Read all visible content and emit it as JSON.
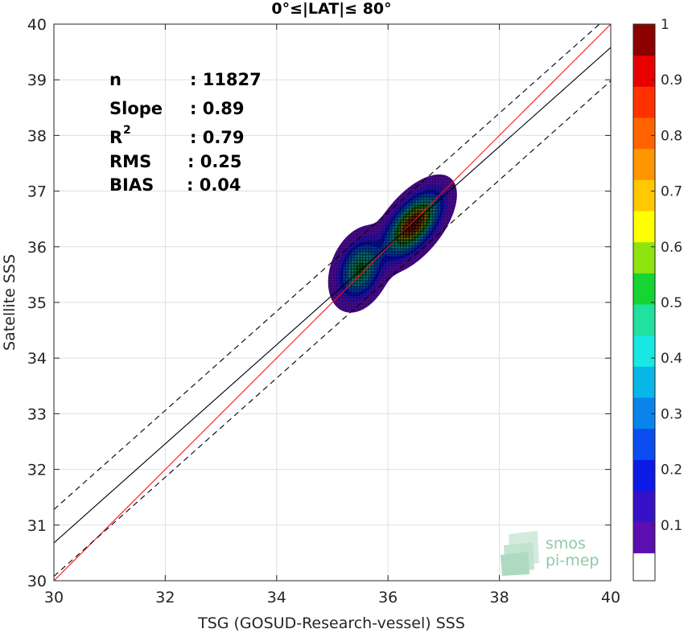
{
  "chart_data": {
    "type": "heatmap",
    "title": "0°≤|LAT|≤ 80°",
    "xlabel": "TSG (GOSUD-Research-vessel) SSS",
    "ylabel": "Satellite SSS",
    "xlim": [
      30,
      40
    ],
    "ylim": [
      30,
      40
    ],
    "xticks": [
      "30",
      "32",
      "34",
      "36",
      "38",
      "40"
    ],
    "yticks": [
      "30",
      "31",
      "32",
      "33",
      "34",
      "35",
      "36",
      "37",
      "38",
      "39",
      "40"
    ],
    "grid": true,
    "stats": [
      {
        "label": "n",
        "value": ": 11827"
      },
      {
        "label": "Slope",
        "value": ": 0.89"
      },
      {
        "label": "R",
        "sup": "2",
        "value": ": 0.79"
      },
      {
        "label": "RMS",
        "value": ": 0.25"
      },
      {
        "label": "BIAS",
        "value": ": 0.04"
      }
    ],
    "lines": {
      "one_to_one": {
        "color": "#e41a1c",
        "points": [
          [
            30,
            30
          ],
          [
            40,
            40
          ]
        ]
      },
      "regression": {
        "color": "#000000",
        "points": [
          [
            30,
            30.68
          ],
          [
            40,
            39.58
          ]
        ]
      },
      "upper_band": {
        "color": "#000000",
        "style": "dashed",
        "points": [
          [
            30,
            31.28
          ],
          [
            40,
            40.18
          ]
        ]
      },
      "lower_band": {
        "color": "#000000",
        "style": "dashed",
        "points": [
          [
            30,
            30.08
          ],
          [
            40,
            38.98
          ]
        ]
      }
    },
    "density_peaks": [
      {
        "x": 36.45,
        "y": 36.4,
        "value": 1.0,
        "sx": 0.28,
        "sy": 0.32,
        "rho": 0.6
      },
      {
        "x": 35.5,
        "y": 35.6,
        "value": 0.58,
        "sx": 0.22,
        "sy": 0.3,
        "rho": 0.3
      }
    ],
    "colorbar": {
      "range": [
        0,
        1
      ],
      "levels": 15,
      "ticks": [
        "0.1",
        "0.2",
        "0.3",
        "0.4",
        "0.5",
        "0.6",
        "0.7",
        "0.8",
        "0.9",
        "1"
      ],
      "colors": [
        "#ffffff",
        "#5b0fb0",
        "#3512c8",
        "#0c1ae6",
        "#0b4df0",
        "#0a83ec",
        "#08b7e8",
        "#18e8e4",
        "#21e0a0",
        "#16d431",
        "#8ee40e",
        "#ffff00",
        "#ffc800",
        "#ff9600",
        "#ff6400",
        "#ff3200",
        "#e80000",
        "#8c0000"
      ]
    }
  },
  "logo": {
    "line1": "smos",
    "line2": "pi-mep"
  }
}
